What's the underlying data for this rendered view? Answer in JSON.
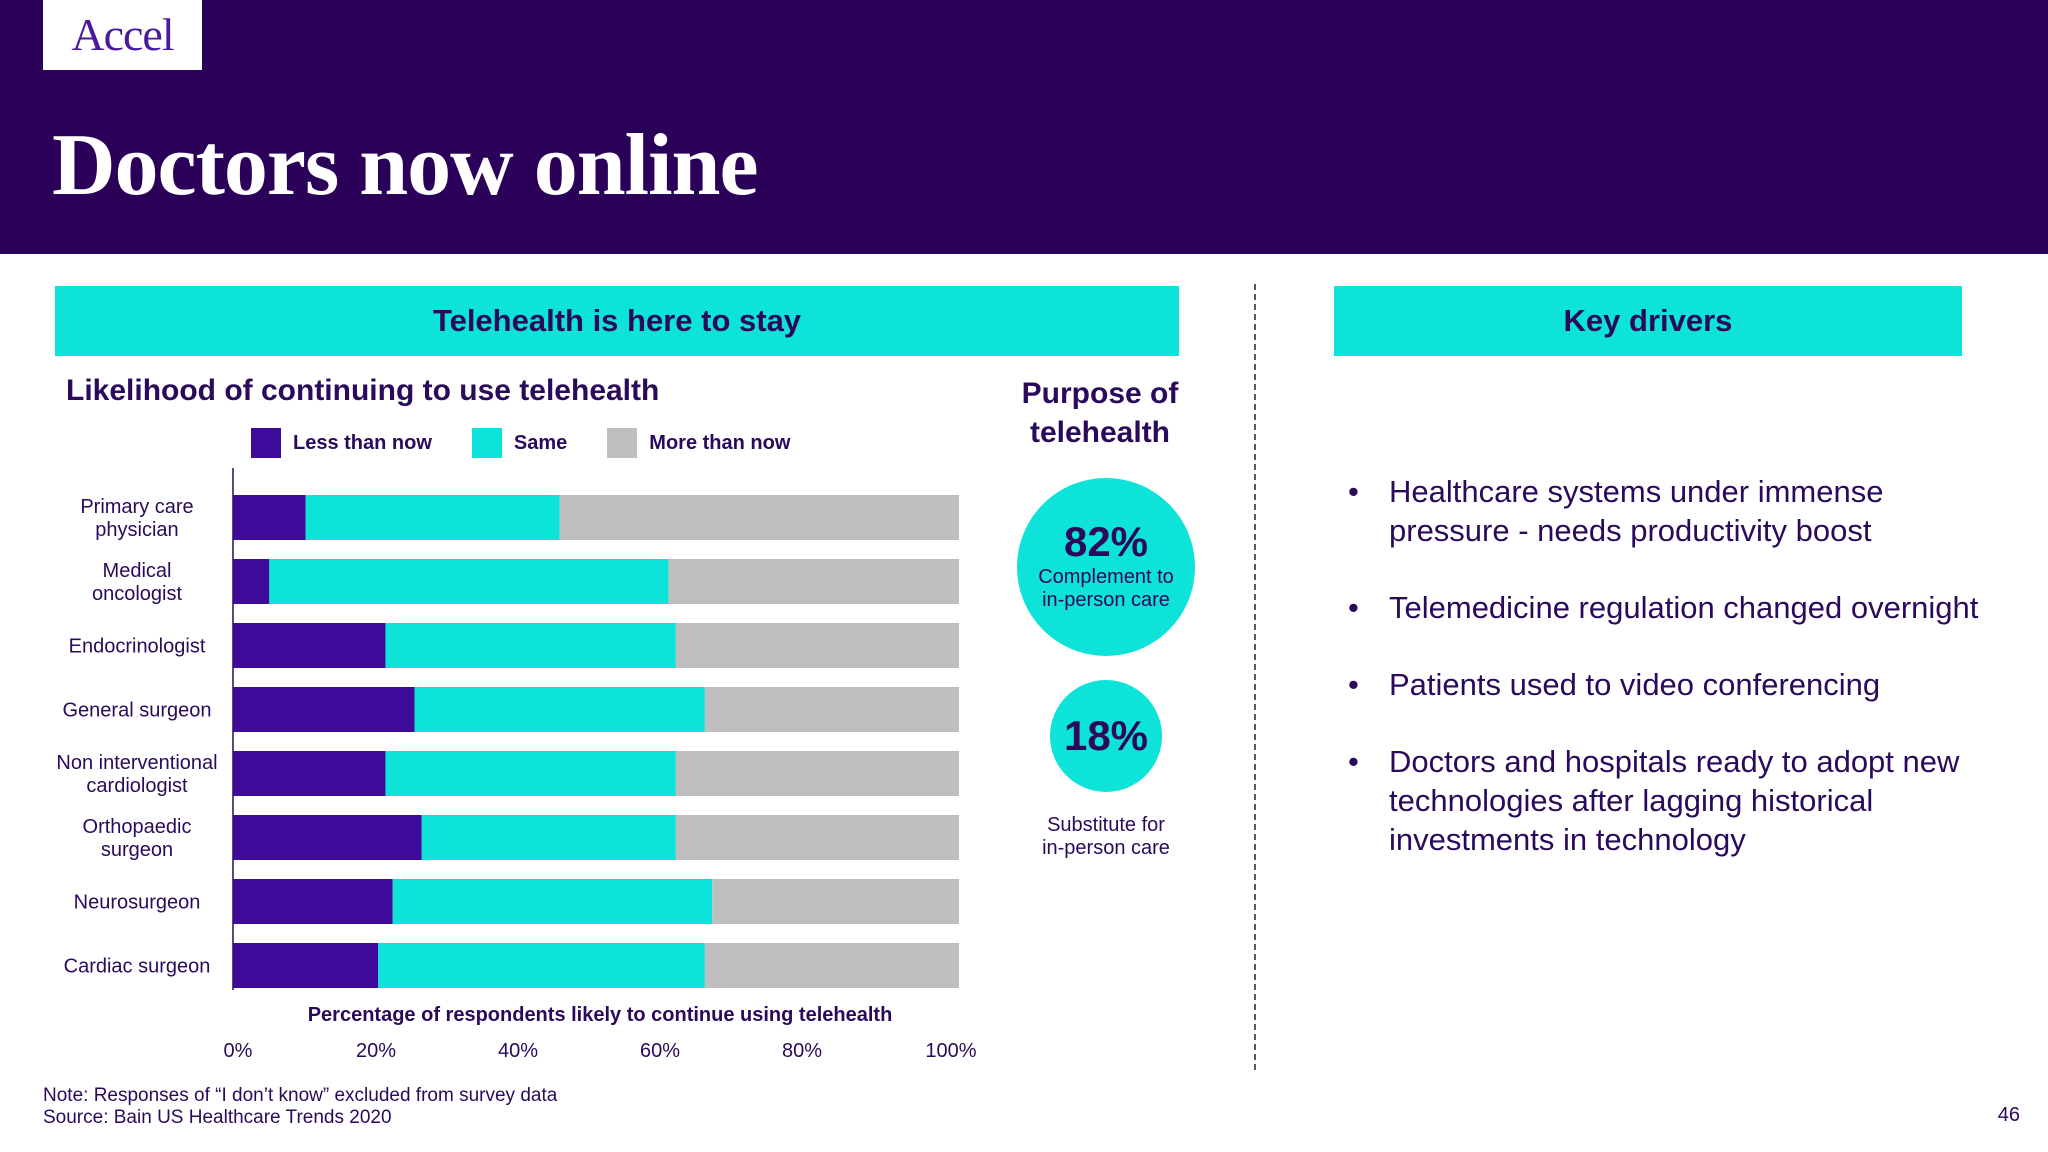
{
  "header": {
    "logo": "Accel",
    "title": "Doctors now online"
  },
  "left_banner": "Telehealth is here to stay",
  "right_banner": "Key drivers",
  "purpose": {
    "title_line1": "Purpose of",
    "title_line2": "telehealth",
    "complement": {
      "value": "82%",
      "caption_line1": "Complement to",
      "caption_line2": "in-person care"
    },
    "substitute": {
      "value": "18%",
      "caption_line1": "Substitute for",
      "caption_line2": "in-person care"
    }
  },
  "key_drivers": [
    "Healthcare systems under immense pressure - needs productivity boost",
    "Telemedicine regulation changed overnight",
    "Patients used to video conferencing",
    "Doctors and hospitals ready to adopt new technologies after lagging historical investments in technology"
  ],
  "footnotes": {
    "note": "Note: Responses of “I don’t know” excluded from survey data",
    "source": "Source: Bain US Healthcare Trends 2020"
  },
  "page_number": "46",
  "colors": {
    "header_bg": "#2b0059",
    "accent": "#0de3d8",
    "less": "#3d0a9a",
    "same": "#0de3d8",
    "more": "#bfbfbf",
    "text": "#2b0a5b"
  },
  "chart_data": {
    "type": "bar",
    "orientation": "horizontal",
    "stacked": true,
    "title": "Likelihood of continuing to use telehealth",
    "xlabel": "Percentage of respondents likely to continue using telehealth",
    "ylabel": "",
    "xlim": [
      0,
      100
    ],
    "x_ticks": [
      "0%",
      "20%",
      "40%",
      "60%",
      "80%",
      "100%"
    ],
    "legend_placement": "top",
    "grid": false,
    "categories": [
      [
        "Primary care",
        "physician"
      ],
      [
        "Medical",
        "oncologist"
      ],
      [
        "Endocrinologist"
      ],
      [
        "General surgeon"
      ],
      [
        "Non interventional",
        "cardiologist"
      ],
      [
        "Orthopaedic",
        "surgeon"
      ],
      [
        "Neurosurgeon"
      ],
      [
        "Cardiac surgeon"
      ]
    ],
    "series": [
      {
        "name": "Less than now",
        "color": "#3d0a9a",
        "values": [
          10,
          5,
          21,
          25,
          21,
          26,
          22,
          20
        ]
      },
      {
        "name": "Same",
        "color": "#0de3d8",
        "values": [
          35,
          55,
          40,
          40,
          40,
          35,
          44,
          45
        ]
      },
      {
        "name": "More than now",
        "color": "#bfbfbf",
        "values": [
          55,
          40,
          39,
          35,
          39,
          39,
          34,
          35
        ]
      }
    ]
  }
}
